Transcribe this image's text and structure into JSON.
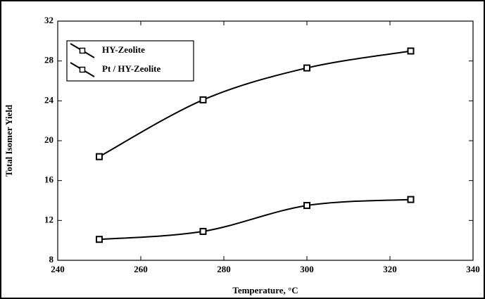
{
  "chart_data": {
    "type": "line",
    "x_label": "Temperature, °C",
    "y_label": "Total Isomer Yield",
    "x": [
      250,
      275,
      300,
      325
    ],
    "series": [
      {
        "name": "HY-Zeolite",
        "color": "#000000",
        "values": [
          10.1,
          10.9,
          13.5,
          14.1
        ]
      },
      {
        "name": "Pt / HY-Zeolite",
        "color": "#000000",
        "values": [
          18.4,
          24.1,
          27.3,
          29.0
        ]
      }
    ],
    "xlim": [
      240,
      340
    ],
    "xticks": [
      240,
      260,
      280,
      300,
      320,
      340
    ],
    "ylim": [
      8,
      32
    ],
    "yticks": [
      8,
      12,
      16,
      20,
      24,
      28,
      32
    ],
    "legend": "upper left"
  }
}
